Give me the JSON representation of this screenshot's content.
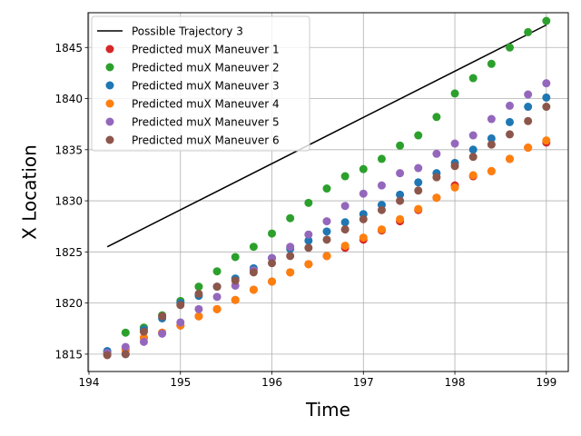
{
  "chart_data": {
    "type": "scatter",
    "xlabel": "Time",
    "ylabel": "X Location",
    "xlim": [
      193.99,
      199.24
    ],
    "ylim": [
      1813.3,
      1848.4
    ],
    "xticks": [
      194,
      195,
      196,
      197,
      198,
      199
    ],
    "yticks": [
      1815,
      1820,
      1825,
      1830,
      1835,
      1840,
      1845
    ],
    "grid": true,
    "legend_position": "top-left",
    "line": {
      "name": "Possible Trajectory 3",
      "color": "#000000",
      "x": [
        194.2,
        199.0
      ],
      "y": [
        1825.5,
        1847.2
      ]
    },
    "x": [
      194.2,
      194.4,
      194.6,
      194.8,
      195.0,
      195.2,
      195.4,
      195.6,
      195.8,
      196.0,
      196.2,
      196.4,
      196.6,
      196.8,
      197.0,
      197.2,
      197.4,
      197.6,
      197.8,
      198.0,
      198.2,
      198.4,
      198.6,
      198.8,
      199.0
    ],
    "series": [
      {
        "name": "Predicted muX Maneuver 1",
        "color": "#d62728",
        "values": [
          1815.0,
          1815.4,
          1816.6,
          1817.1,
          1817.8,
          1818.7,
          1819.4,
          1820.3,
          1821.3,
          1822.1,
          1823.0,
          1823.8,
          1824.6,
          1825.4,
          1826.2,
          1827.1,
          1828.0,
          1829.1,
          1830.3,
          1831.5,
          1832.4,
          1832.9,
          1834.1,
          1835.2,
          1835.7
        ]
      },
      {
        "name": "Predicted muX Maneuver 2",
        "color": "#2ca02c",
        "values": [
          1815.2,
          1817.1,
          1817.6,
          1818.8,
          1820.2,
          1821.6,
          1823.1,
          1824.5,
          1825.5,
          1826.8,
          1828.3,
          1829.8,
          1831.2,
          1832.4,
          1833.1,
          1834.1,
          1835.4,
          1836.4,
          1838.2,
          1840.5,
          1842.0,
          1843.4,
          1845.0,
          1846.5,
          1847.6
        ]
      },
      {
        "name": "Predicted muX Maneuver 3",
        "color": "#1f77b4",
        "values": [
          1815.3,
          1815.0,
          1817.4,
          1818.5,
          1820.0,
          1820.7,
          1821.6,
          1822.4,
          1823.4,
          1824.4,
          1825.3,
          1826.1,
          1827.0,
          1827.9,
          1828.7,
          1829.6,
          1830.6,
          1831.8,
          1832.7,
          1833.7,
          1835.0,
          1836.1,
          1837.7,
          1839.2,
          1840.1
        ]
      },
      {
        "name": "Predicted muX Maneuver 4",
        "color": "#ff7f0e",
        "values": [
          1815.0,
          1815.4,
          1816.6,
          1817.1,
          1817.8,
          1818.7,
          1819.4,
          1820.3,
          1821.3,
          1822.1,
          1823.0,
          1823.8,
          1824.6,
          1825.6,
          1826.4,
          1827.2,
          1828.2,
          1829.2,
          1830.3,
          1831.3,
          1832.5,
          1832.9,
          1834.1,
          1835.2,
          1835.9
        ]
      },
      {
        "name": "Predicted muX Maneuver 5",
        "color": "#9467bd",
        "values": [
          1815.1,
          1815.7,
          1816.2,
          1817.0,
          1818.1,
          1819.4,
          1820.6,
          1821.7,
          1823.2,
          1824.4,
          1825.5,
          1826.7,
          1828.0,
          1829.5,
          1830.7,
          1831.5,
          1832.7,
          1833.2,
          1834.6,
          1835.6,
          1836.4,
          1838.0,
          1839.3,
          1840.4,
          1841.5
        ]
      },
      {
        "name": "Predicted muX Maneuver 6",
        "color": "#8c564b",
        "values": [
          1814.9,
          1815.0,
          1817.2,
          1818.7,
          1819.8,
          1820.9,
          1821.6,
          1822.2,
          1823.0,
          1823.9,
          1824.6,
          1825.4,
          1826.2,
          1827.2,
          1828.2,
          1829.1,
          1830.0,
          1831.0,
          1832.3,
          1833.4,
          1834.3,
          1835.5,
          1836.5,
          1837.8,
          1839.2
        ]
      }
    ]
  }
}
